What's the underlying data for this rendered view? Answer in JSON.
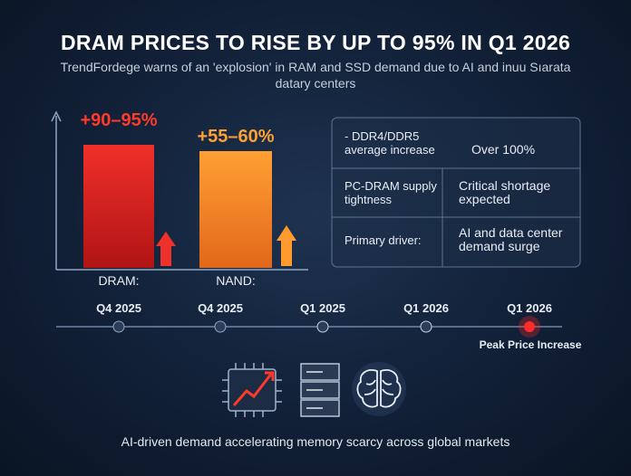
{
  "header": {
    "title": "DRAM PRICES TO RISE BY UP TO 95% IN Q1 2026",
    "subtitle_lines": [
      "TrendFordege warns of an 'explosion' in RAM and SSD demand due to AI and inuu Sıarata",
      "datary centers"
    ]
  },
  "bars": [
    {
      "label": "DRAM:",
      "change": "+90–95%"
    },
    {
      "label": "NAND:",
      "change": "+55–60%"
    }
  ],
  "table": {
    "rows": [
      [
        "- DDR4/DDR5\naverage increase",
        "Over 100%"
      ],
      [
        "PC-DRAM supply\ntightness",
        "Critical shortage\nexpected"
      ],
      [
        "Primary driver:",
        "AI and data center\ndemand surge"
      ]
    ]
  },
  "timeline": {
    "points": [
      "Q4 2025",
      "Q4 2025",
      "Q1 2025",
      "Q1 2026",
      "Q1 2026"
    ],
    "peak_note": "Peak Price Increase"
  },
  "footer": "AI-driven demand accelerating memory scarcy across global markets"
}
